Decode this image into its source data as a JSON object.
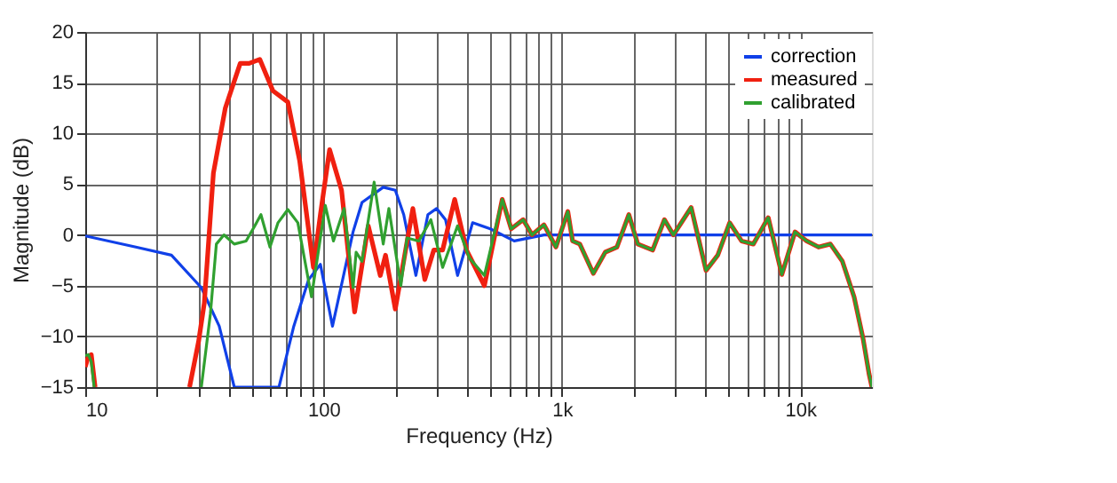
{
  "chart_data": {
    "type": "line",
    "xlabel": "Frequency (Hz)",
    "ylabel": "Magnitude (dB)",
    "log": "x",
    "grid": true,
    "legend": "top right",
    "line_style": "solid",
    "marker": "none",
    "xlim": [
      10,
      20000
    ],
    "ylim": [
      -15,
      20
    ],
    "xticks": [
      {
        "value": 10,
        "label": "10"
      },
      {
        "value": 20,
        "label": null
      },
      {
        "value": 30,
        "label": null
      },
      {
        "value": 40,
        "label": null
      },
      {
        "value": 50,
        "label": null
      },
      {
        "value": 60,
        "label": null
      },
      {
        "value": 70,
        "label": null
      },
      {
        "value": 80,
        "label": null
      },
      {
        "value": 90,
        "label": null
      },
      {
        "value": 100,
        "label": "100"
      },
      {
        "value": 200,
        "label": null
      },
      {
        "value": 300,
        "label": null
      },
      {
        "value": 400,
        "label": null
      },
      {
        "value": 500,
        "label": null
      },
      {
        "value": 600,
        "label": null
      },
      {
        "value": 700,
        "label": null
      },
      {
        "value": 800,
        "label": null
      },
      {
        "value": 900,
        "label": null
      },
      {
        "value": 1000,
        "label": "1k"
      },
      {
        "value": 2000,
        "label": null
      },
      {
        "value": 3000,
        "label": null
      },
      {
        "value": 4000,
        "label": null
      },
      {
        "value": 5000,
        "label": null
      },
      {
        "value": 6000,
        "label": null
      },
      {
        "value": 7000,
        "label": null
      },
      {
        "value": 8000,
        "label": null
      },
      {
        "value": 9000,
        "label": null
      },
      {
        "value": 10000,
        "label": "10k"
      }
    ],
    "yticks": [
      -15,
      -10,
      -5,
      0,
      5,
      10,
      15,
      20
    ],
    "series": [
      {
        "name": "correction",
        "color": "#1040e8",
        "x": [
          10,
          16.3,
          23,
          30.7,
          36.5,
          42.2,
          65,
          75,
          86.6,
          97,
          109,
          133,
          145,
          178,
          200,
          217,
          244,
          274,
          298,
          325,
          365,
          422,
          501,
          631,
          841,
          2000,
          20000
        ],
        "values": [
          -0.1,
          -1.2,
          -2,
          -5.2,
          -9,
          -15,
          -15,
          -9,
          -4.4,
          -2.9,
          -9,
          0.3,
          3.2,
          4.7,
          4.4,
          2,
          -4,
          2,
          2.6,
          1.5,
          -4,
          1.2,
          0.6,
          -0.6,
          0,
          0,
          0
        ]
      },
      {
        "name": "measured",
        "color": "#f02010",
        "x": [
          10,
          10.3,
          10.6,
          11,
          20,
          27.4,
          29.9,
          31.6,
          34.5,
          38.7,
          44.7,
          48.7,
          54,
          61.3,
          70.8,
          79.4,
          90.7,
          97,
          106,
          119,
          135,
          154,
          173,
          182,
          200,
          237,
          266,
          290,
          316,
          355,
          398,
          473,
          562,
          613,
          688,
          750,
          841,
          944,
          1059,
          1109,
          1189,
          1355,
          1521,
          1702,
          1910,
          2081,
          2403,
          2693,
          2938,
          3487,
          4027,
          4510,
          5058,
          5675,
          6360,
          7345,
          8375,
          9510,
          10650,
          11940,
          13390,
          15030,
          16830,
          18350,
          19450,
          20000
        ],
        "values": [
          -13,
          -12,
          -11.8,
          -15,
          null,
          -15,
          -10.5,
          -6.7,
          6.1,
          12.5,
          16.9,
          16.9,
          17.3,
          14.2,
          13.1,
          7.3,
          -3.2,
          2,
          8.4,
          4.4,
          -7.6,
          0.9,
          -4,
          -2,
          -7.3,
          2.6,
          -4.4,
          -1.5,
          -1.5,
          3.5,
          -1.5,
          -5,
          3.5,
          0.6,
          1.5,
          0,
          1,
          -1.2,
          2.3,
          -0.6,
          -0.9,
          -3.8,
          -1.7,
          -1.2,
          2,
          -0.9,
          -1.5,
          1.5,
          0,
          2.7,
          -3.5,
          -2,
          1.2,
          -0.6,
          -0.9,
          1.7,
          -3.9,
          0.3,
          -0.6,
          -1.2,
          -0.9,
          -2.6,
          -6.1,
          -10.2,
          -13.7,
          -15
        ]
      },
      {
        "name": "calibrated",
        "color": "#30a030",
        "x": [
          10,
          10.3,
          10.6,
          10.9,
          20,
          30.7,
          33.5,
          35.5,
          38.2,
          42.2,
          47.3,
          51.5,
          54.6,
          59.6,
          64.4,
          70.8,
          78,
          89,
          101.7,
          110,
          122,
          133,
          137,
          145,
          163,
          178,
          188,
          211,
          224,
          251,
          282,
          316,
          365,
          410,
          473,
          562,
          613,
          688,
          750,
          841,
          944,
          1059,
          1109,
          1189,
          1355,
          1521,
          1702,
          1910,
          2081,
          2403,
          2693,
          2938,
          3487,
          4027,
          4510,
          5058,
          5675,
          6360,
          7345,
          8375,
          9510,
          10650,
          11940,
          13390,
          15030,
          16830,
          18350,
          19450,
          20000
        ],
        "values": [
          -11.9,
          -11.8,
          -12.5,
          -15,
          null,
          -15,
          -7.8,
          -0.9,
          0,
          -0.9,
          -0.6,
          0.9,
          2,
          -1.2,
          1.2,
          2.5,
          1.2,
          -6.1,
          2.9,
          -0.6,
          2.6,
          -5.2,
          -1.7,
          -2.6,
          5.2,
          -0.9,
          2.6,
          -5,
          -0.3,
          -0.6,
          1.5,
          -3.2,
          0.9,
          -2.3,
          -4,
          3.5,
          0.6,
          1.5,
          0,
          1,
          -1.2,
          2.3,
          -0.6,
          -0.9,
          -3.8,
          -1.7,
          -1.2,
          2,
          -0.9,
          -1.5,
          1.5,
          0,
          2.7,
          -3.5,
          -2,
          1.2,
          -0.6,
          -0.9,
          1.7,
          -3.9,
          0.3,
          -0.6,
          -1.2,
          -0.9,
          -2.6,
          -6.1,
          -10.2,
          -13.7,
          -15
        ]
      }
    ]
  }
}
